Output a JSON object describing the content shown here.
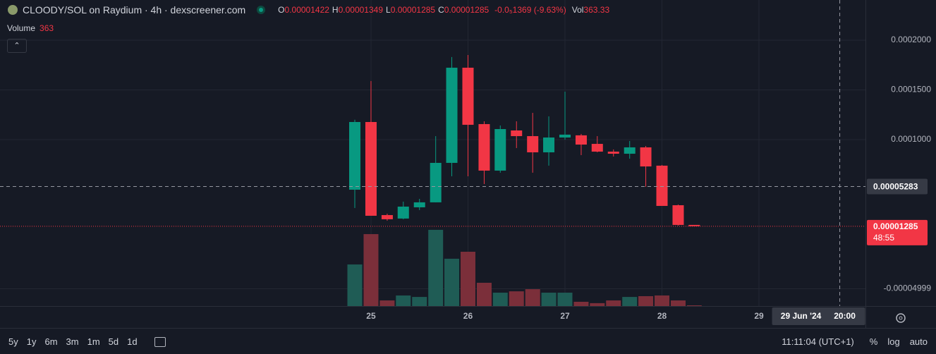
{
  "chart_data": {
    "type": "candlestick",
    "title": "CLOODY/SOL on Raydium · 4h · dexscreener.com",
    "ohlc_legend": [
      {
        "key": "O",
        "value": "0.00001422"
      },
      {
        "key": "H",
        "value": "0.00001349"
      },
      {
        "key": "L",
        "value": "0.00001285"
      },
      {
        "key": "C",
        "value": "0.00001285"
      }
    ],
    "change_label": "-0.0₅1369 (-9.63%)",
    "vol_key": "Vol",
    "vol_value": "363.33",
    "volume_title": "Volume",
    "volume_label": "363",
    "x": [
      24.833,
      25,
      25.167,
      25.333,
      25.5,
      25.667,
      25.833,
      26,
      26.167,
      26.333,
      26.5,
      26.667,
      26.833,
      27,
      27.167,
      27.333,
      27.5,
      27.667,
      27.833,
      28,
      28.167,
      28.333
    ],
    "open": [
      4.96e-05,
      0.0001177,
      2.41e-05,
      2.06e-05,
      3.19e-05,
      3.69e-05,
      7.66e-05,
      0.0001723,
      0.0001156,
      6.88e-05,
      0.0001092,
      0.0001035,
      8.72e-05,
      0.0001021,
      0.0001043,
      9.57e-05,
      8.79e-05,
      8.58e-05,
      9.22e-05,
      7.38e-05,
      3.4e-05,
      1.422e-05
    ],
    "high": [
      0.00012,
      0.0001589,
      2.55e-05,
      3.76e-05,
      4.04e-05,
      0.0001035,
      0.000183,
      0.0001851,
      0.0001184,
      0.0001142,
      0.0001184,
      0.0001269,
      0.0001234,
      0.0001482,
      0.0001057,
      0.0001035,
      9.01e-05,
      9.86e-05,
      9.36e-05,
      7.45e-05,
      3.47e-05,
      1.349e-05
    ],
    "low": [
      3.12e-05,
      2.34e-05,
      1.84e-05,
      1.99e-05,
      2.91e-05,
      3.69e-05,
      6.31e-05,
      6.31e-05,
      5.53e-05,
      6.67e-05,
      9.15e-05,
      6.67e-05,
      7.38e-05,
      0.0001,
      8.44e-05,
      8.72e-05,
      8.3e-05,
      8.08e-05,
      5.25e-05,
      3.33e-05,
      1.35e-05,
      1.285e-05
    ],
    "close": [
      0.0001177,
      2.34e-05,
      1.99e-05,
      3.26e-05,
      3.69e-05,
      7.66e-05,
      0.0001723,
      0.0001149,
      6.88e-05,
      0.0001106,
      0.0001035,
      8.72e-05,
      0.0001021,
      0.000105,
      9.5e-05,
      8.79e-05,
      8.58e-05,
      9.22e-05,
      7.3e-05,
      3.33e-05,
      1.42e-05,
      1.285e-05
    ],
    "volume": [
      21450,
      37100,
      2900,
      5450,
      4700,
      39300,
      24400,
      28000,
      12000,
      6900,
      7600,
      8700,
      6900,
      6900,
      2200,
      1500,
      2900,
      4700,
      5100,
      5450,
      2900,
      363.33
    ],
    "xlim": [
      21.175,
      30.098
    ],
    "xticks": [
      25,
      26,
      27,
      28,
      29
    ],
    "ylim": [
      -6.74e-05,
      0.0002404
    ],
    "yticks": [
      {
        "value": 0.0002,
        "label": "0.0002000"
      },
      {
        "value": 0.00015,
        "label": "0.0001500"
      },
      {
        "value": 0.0001,
        "label": "0.0001000"
      },
      {
        "value": -4.999e-05,
        "label": "-0.00004999"
      }
    ],
    "vlim": [
      0,
      40000
    ],
    "grid": true,
    "log_scale": false,
    "up_color": "#089981",
    "down_color": "#f23645",
    "up_volume_color": "#1f5c55",
    "down_volume_color": "#7b2f3a",
    "crosshair": {
      "x": 29.833,
      "price": {
        "value": 5.283e-05,
        "label": "0.00005283"
      },
      "date_label": "29 Jun '24",
      "time_label": "20:00"
    },
    "last_price": {
      "value": 1.285e-05,
      "label": "0.00001285"
    },
    "countdown": "48:55",
    "ranges": [
      "5y",
      "1y",
      "6m",
      "3m",
      "1m",
      "5d",
      "1d"
    ],
    "clock": "11:11:04 (UTC+1)",
    "buttons": [
      "%",
      "log",
      "auto"
    ]
  }
}
